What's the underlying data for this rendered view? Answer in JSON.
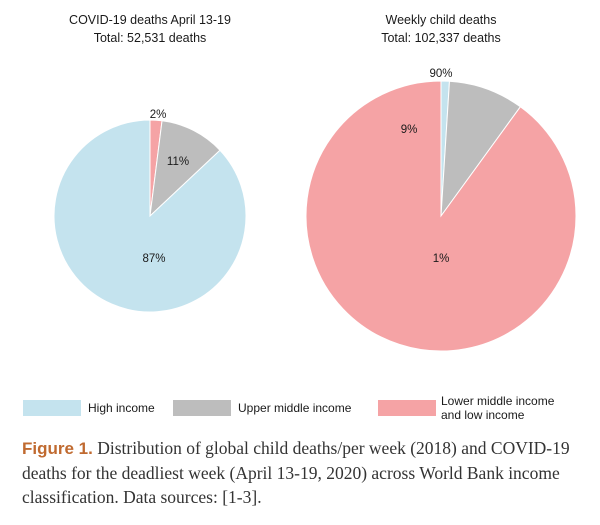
{
  "chart_data": [
    {
      "type": "pie",
      "title": "COVID-19 deaths April 13-19",
      "subtitle": "Total: 52,531 deaths",
      "categories": [
        "High income",
        "Upper middle income",
        "Lower middle income and low income"
      ],
      "values": [
        87,
        11,
        2
      ],
      "labels": [
        "87%",
        "11%",
        "2%"
      ]
    },
    {
      "type": "pie",
      "title": "Weekly child deaths",
      "subtitle": "Total: 102,337 deaths",
      "categories": [
        "High income",
        "Upper middle income",
        "Lower middle income and low income"
      ],
      "values": [
        1,
        9,
        90
      ],
      "labels": [
        "1%",
        "9%",
        "90%"
      ]
    }
  ],
  "legend": {
    "placement": "bottom",
    "items": [
      {
        "label": "High income",
        "color": "#c4e3ee"
      },
      {
        "label": "Upper middle income",
        "color": "#bdbdbd"
      },
      {
        "label_line1": "Lower middle income",
        "label_line2": "and low income",
        "color": "#f5a3a5"
      }
    ]
  },
  "colors": {
    "High income": "#c4e3ee",
    "Upper middle income": "#bdbdbd",
    "Lower middle income and low income": "#f5a3a5",
    "caption_lead": "#c06a30"
  },
  "caption": {
    "lead": "Figure 1.",
    "text": " Distribution of global child deaths/per week (2018) and COVID-19 deaths for the deadliest week (April 13-19, 2020) across World Bank income classification. Data sources: [1-3]."
  }
}
